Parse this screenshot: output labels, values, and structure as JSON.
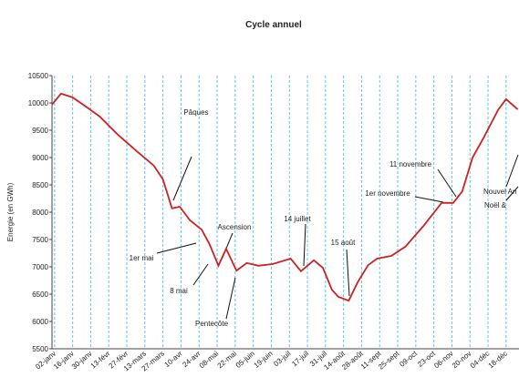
{
  "chart_data": {
    "type": "line",
    "title": "Cycle annuel",
    "y_label": "Energie (en GWh)",
    "xlim": [
      0,
      362
    ],
    "ylim": [
      5500,
      10500
    ],
    "yticks": [
      5500,
      6000,
      6500,
      7000,
      7500,
      8000,
      8500,
      9000,
      9500,
      10000,
      10500
    ],
    "xticks": [
      {
        "value": 2,
        "label": "02-janv"
      },
      {
        "value": 16,
        "label": "16-janv"
      },
      {
        "value": 30,
        "label": "30-janv"
      },
      {
        "value": 44,
        "label": "13-févr"
      },
      {
        "value": 58,
        "label": "27-févr"
      },
      {
        "value": 72,
        "label": "13-mars"
      },
      {
        "value": 86,
        "label": "27-mars"
      },
      {
        "value": 100,
        "label": "10-avr"
      },
      {
        "value": 114,
        "label": "24-avr"
      },
      {
        "value": 128,
        "label": "08-mai"
      },
      {
        "value": 142,
        "label": "22-mai"
      },
      {
        "value": 156,
        "label": "05-juin"
      },
      {
        "value": 170,
        "label": "19-juin"
      },
      {
        "value": 184,
        "label": "03-juil"
      },
      {
        "value": 198,
        "label": "17-juil"
      },
      {
        "value": 212,
        "label": "31-juil"
      },
      {
        "value": 226,
        "label": "14-août"
      },
      {
        "value": 240,
        "label": "28-août"
      },
      {
        "value": 254,
        "label": "11-sept"
      },
      {
        "value": 268,
        "label": "25-sept"
      },
      {
        "value": 282,
        "label": "09-oct"
      },
      {
        "value": 296,
        "label": "23-oct"
      },
      {
        "value": 310,
        "label": "06-nov"
      },
      {
        "value": 324,
        "label": "20-nov"
      },
      {
        "value": 338,
        "label": "04-déc"
      },
      {
        "value": 352,
        "label": "18-déc"
      }
    ],
    "grid": true,
    "series": [
      {
        "color": "#cc2222",
        "x": [
          0,
          7,
          16,
          27,
          37,
          51,
          65,
          79,
          86,
          93,
          99,
          107,
          116,
          122,
          129,
          135,
          143,
          151,
          160,
          171,
          185,
          193,
          203,
          210,
          217,
          222,
          230,
          237,
          245,
          252,
          263,
          274,
          288,
          302,
          311,
          318,
          326,
          335,
          346,
          352,
          361
        ],
        "values": [
          9970,
          10170,
          10100,
          9920,
          9750,
          9420,
          9130,
          8850,
          8600,
          8070,
          8100,
          7850,
          7680,
          7420,
          7020,
          7330,
          6930,
          7070,
          7020,
          7050,
          7150,
          6920,
          7120,
          6980,
          6580,
          6450,
          6380,
          6720,
          7030,
          7150,
          7200,
          7370,
          7750,
          8170,
          8170,
          8380,
          9000,
          9380,
          9880,
          10070,
          9880
        ]
      }
    ],
    "annotations": [
      "Pâques",
      "1er mai",
      "8 mai",
      "Ascension",
      "Pentecôte",
      "14 juillet",
      "15 août",
      "11 novembre",
      "1er novembre",
      "Nouvel An",
      "Noël &"
    ]
  }
}
